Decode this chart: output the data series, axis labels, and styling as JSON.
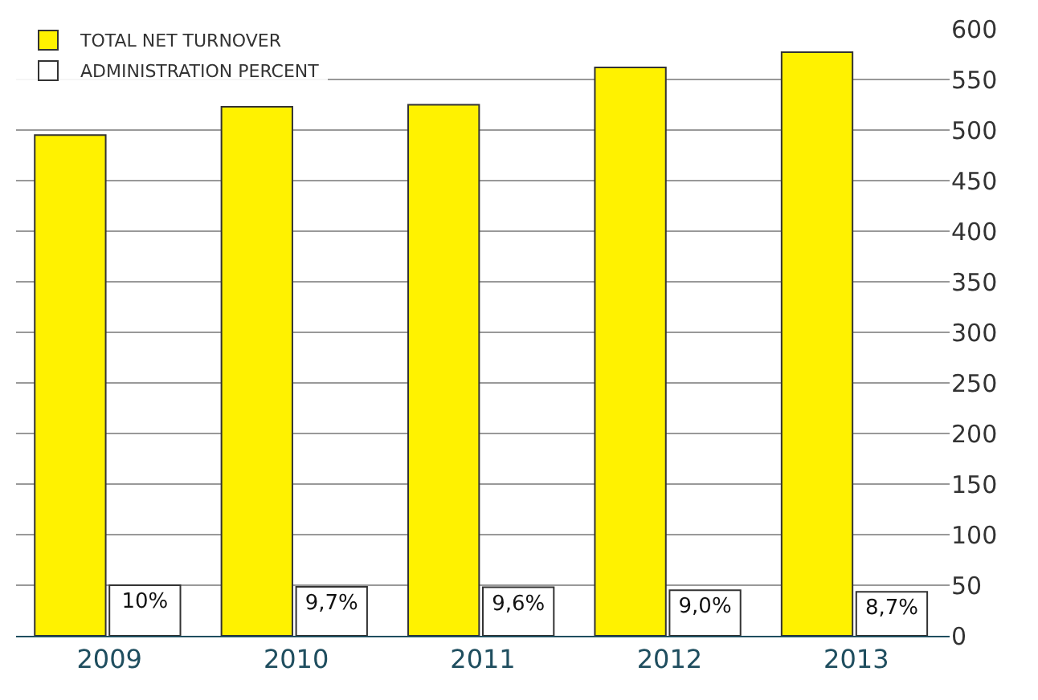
{
  "chart_data": {
    "type": "bar",
    "categories": [
      "2009",
      "2010",
      "2011",
      "2012",
      "2013"
    ],
    "series": [
      {
        "name": "TOTAL NET TURNOVER",
        "color": "#fff200",
        "values": [
          495,
          523,
          525,
          562,
          577
        ]
      },
      {
        "name": "ADMINISTRATION PERCENT",
        "color": "#ffffff",
        "axis": "y2",
        "values": [
          10,
          9.7,
          9.6,
          9.0,
          8.7
        ],
        "value_labels": [
          "10%",
          "9,7%",
          "9,6%",
          "9,0%",
          "8,7%"
        ]
      }
    ],
    "ylim": [
      0,
      600
    ],
    "yticks": [
      0,
      50,
      100,
      150,
      200,
      250,
      300,
      350,
      400,
      450,
      500,
      550,
      600
    ],
    "y2lim": [
      0,
      120
    ],
    "grid": "y",
    "legend": "top left"
  }
}
